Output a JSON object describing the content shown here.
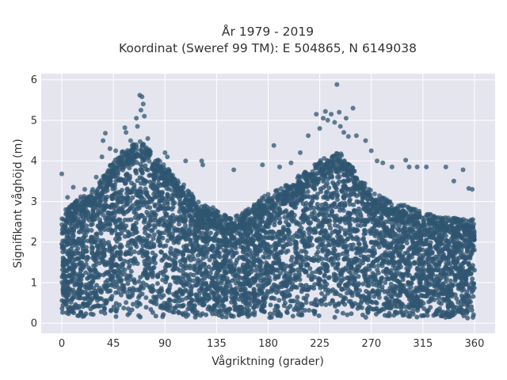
{
  "chart_data": {
    "type": "scatter",
    "title_lines": [
      "År 1979 - 2019",
      "Koordinat (Sweref 99 TM): E 504865, N 6149038"
    ],
    "xlabel": "Vågriktning (grader)",
    "ylabel": "Signifikant våghöjd (m)",
    "xlim": [
      -18,
      378
    ],
    "ylim": [
      -0.25,
      6.15
    ],
    "xticks": [
      0,
      45,
      90,
      135,
      180,
      225,
      270,
      315,
      360
    ],
    "yticks": [
      0,
      1,
      2,
      3,
      4,
      5,
      6
    ],
    "grid": true,
    "marker_color": "#2f5570",
    "background_color": "#e5e5ef",
    "envelope": {
      "direction": [
        0,
        10,
        20,
        30,
        40,
        45,
        50,
        60,
        65,
        70,
        80,
        90,
        100,
        110,
        120,
        130,
        135,
        140,
        150,
        160,
        170,
        180,
        190,
        200,
        210,
        220,
        225,
        230,
        240,
        245,
        250,
        260,
        270,
        280,
        290,
        300,
        310,
        315,
        320,
        330,
        340,
        350,
        360
      ],
      "upper_height": [
        2.7,
        3.0,
        3.2,
        3.4,
        3.8,
        4.0,
        4.2,
        4.4,
        4.5,
        4.5,
        4.2,
        3.9,
        3.6,
        3.3,
        3.0,
        2.9,
        2.8,
        2.7,
        2.6,
        2.8,
        3.0,
        3.2,
        3.3,
        3.5,
        3.7,
        3.9,
        4.0,
        4.1,
        4.2,
        4.2,
        4.0,
        3.6,
        3.3,
        3.1,
        3.0,
        2.9,
        2.8,
        2.7,
        2.7,
        2.6,
        2.6,
        2.6,
        2.6
      ]
    },
    "outliers": [
      {
        "x": 0,
        "y": 3.68
      },
      {
        "x": 5,
        "y": 3.1
      },
      {
        "x": 10,
        "y": 3.35
      },
      {
        "x": 20,
        "y": 3.3
      },
      {
        "x": 30,
        "y": 3.6
      },
      {
        "x": 35,
        "y": 4.1
      },
      {
        "x": 36,
        "y": 4.5
      },
      {
        "x": 38,
        "y": 4.68
      },
      {
        "x": 42,
        "y": 4.3
      },
      {
        "x": 47,
        "y": 4.25
      },
      {
        "x": 55,
        "y": 4.82
      },
      {
        "x": 56,
        "y": 4.7
      },
      {
        "x": 60,
        "y": 4.5
      },
      {
        "x": 65,
        "y": 5.05
      },
      {
        "x": 66,
        "y": 4.85
      },
      {
        "x": 68,
        "y": 5.62
      },
      {
        "x": 69,
        "y": 5.25
      },
      {
        "x": 70,
        "y": 5.58
      },
      {
        "x": 71,
        "y": 5.4
      },
      {
        "x": 72,
        "y": 5.1
      },
      {
        "x": 75,
        "y": 4.55
      },
      {
        "x": 90,
        "y": 4.2
      },
      {
        "x": 92,
        "y": 4.1
      },
      {
        "x": 108,
        "y": 4.0
      },
      {
        "x": 122,
        "y": 4.0
      },
      {
        "x": 123,
        "y": 3.9
      },
      {
        "x": 150,
        "y": 3.78
      },
      {
        "x": 175,
        "y": 3.9
      },
      {
        "x": 185,
        "y": 4.38
      },
      {
        "x": 190,
        "y": 3.85
      },
      {
        "x": 200,
        "y": 3.95
      },
      {
        "x": 208,
        "y": 4.2
      },
      {
        "x": 215,
        "y": 4.62
      },
      {
        "x": 222,
        "y": 5.15
      },
      {
        "x": 225,
        "y": 4.8
      },
      {
        "x": 228,
        "y": 5.05
      },
      {
        "x": 230,
        "y": 5.22
      },
      {
        "x": 232,
        "y": 5.0
      },
      {
        "x": 235,
        "y": 5.15
      },
      {
        "x": 238,
        "y": 4.95
      },
      {
        "x": 240,
        "y": 5.88
      },
      {
        "x": 242,
        "y": 5.2
      },
      {
        "x": 243,
        "y": 4.85
      },
      {
        "x": 246,
        "y": 4.7
      },
      {
        "x": 248,
        "y": 5.05
      },
      {
        "x": 250,
        "y": 4.6
      },
      {
        "x": 254,
        "y": 5.3
      },
      {
        "x": 257,
        "y": 4.62
      },
      {
        "x": 265,
        "y": 4.5
      },
      {
        "x": 270,
        "y": 4.25
      },
      {
        "x": 275,
        "y": 4.0
      },
      {
        "x": 280,
        "y": 3.95
      },
      {
        "x": 288,
        "y": 3.85
      },
      {
        "x": 300,
        "y": 4.02
      },
      {
        "x": 303,
        "y": 3.85
      },
      {
        "x": 310,
        "y": 3.85
      },
      {
        "x": 318,
        "y": 3.85
      },
      {
        "x": 335,
        "y": 3.85
      },
      {
        "x": 342,
        "y": 3.5
      },
      {
        "x": 350,
        "y": 3.78
      },
      {
        "x": 355,
        "y": 3.32
      },
      {
        "x": 358,
        "y": 3.3
      }
    ]
  }
}
